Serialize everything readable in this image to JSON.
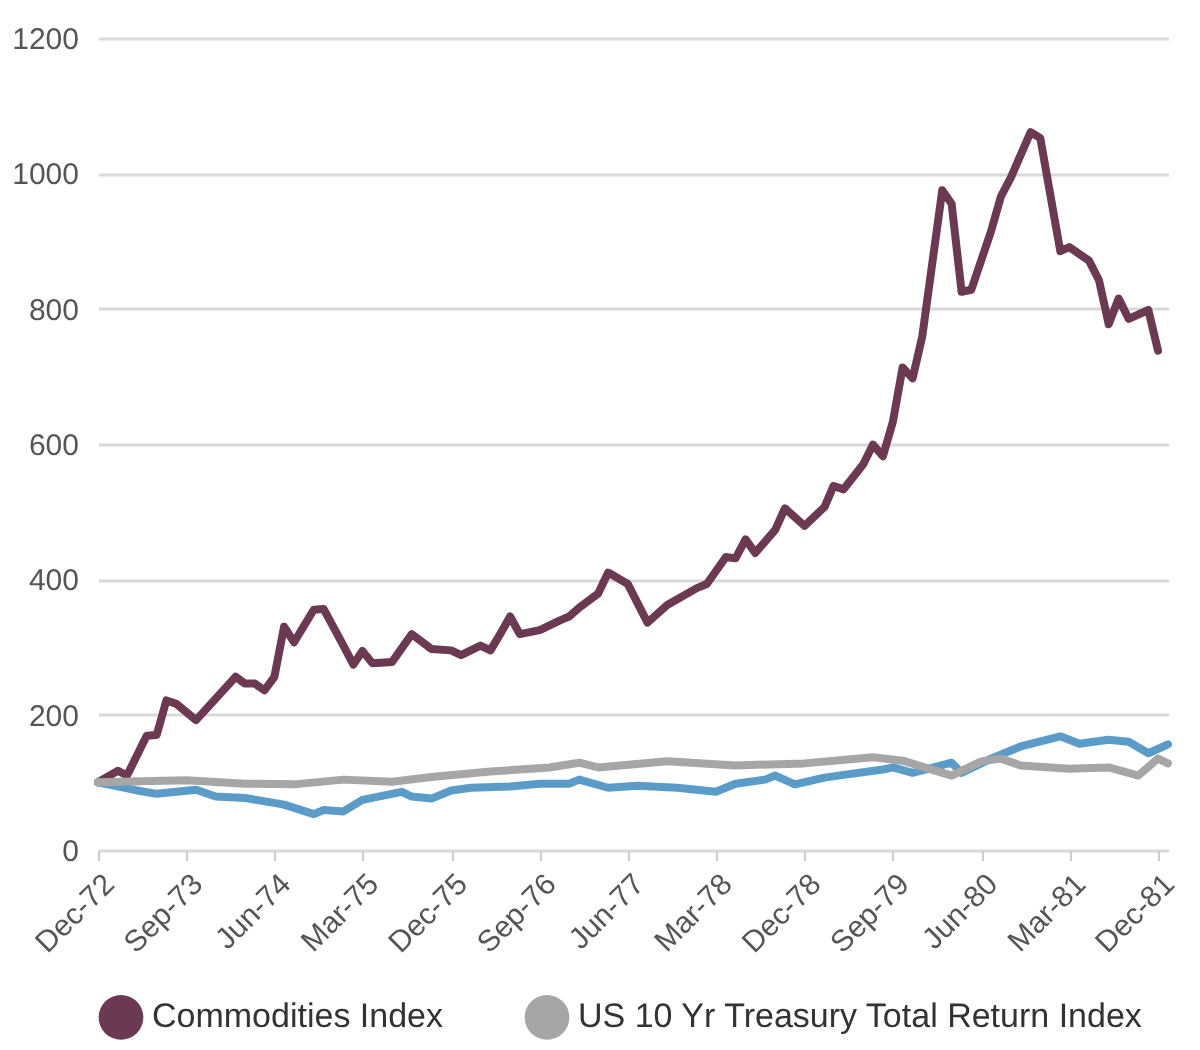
{
  "chart_data": {
    "type": "line",
    "xlim": [
      "1972-12",
      "1982-01"
    ],
    "xticks": [
      {
        "value": "1972-12",
        "label": "Dec-72"
      },
      {
        "value": "1973-09",
        "label": "Sep-73"
      },
      {
        "value": "1974-06",
        "label": "Jun-74"
      },
      {
        "value": "1975-03",
        "label": "Mar-75"
      },
      {
        "value": "1975-12",
        "label": "Dec-75"
      },
      {
        "value": "1976-09",
        "label": "Sep-76"
      },
      {
        "value": "1977-06",
        "label": "Jun-77"
      },
      {
        "value": "1978-03",
        "label": "Mar-78"
      },
      {
        "value": "1978-12",
        "label": "Dec-78"
      },
      {
        "value": "1979-09",
        "label": "Sep-79"
      },
      {
        "value": "1980-06",
        "label": "Jun-80"
      },
      {
        "value": "1981-03",
        "label": "Mar-81"
      },
      {
        "value": "1981-12",
        "label": "Dec-81"
      }
    ],
    "ylim": [
      0,
      1200
    ],
    "yticks": [
      0,
      200,
      400,
      600,
      800,
      1000,
      1200
    ],
    "grid": "y",
    "legend": "bottom",
    "marker": "none",
    "line_style": "solid",
    "series": [
      {
        "name": "Commodities Index",
        "color": "#6b3a52",
        "x": [
          "1972-12",
          "1973-02",
          "1973-03",
          "1973-05",
          "1973-06",
          "1973-07",
          "1973-08",
          "1973-10",
          "1974-02",
          "1974-03",
          "1974-04",
          "1974-05",
          "1974-06",
          "1974-07",
          "1974-08",
          "1974-10",
          "1974-11",
          "1975-01",
          "1975-02",
          "1975-03",
          "1975-04",
          "1975-06",
          "1975-08",
          "1975-10",
          "1975-12",
          "1976-01",
          "1976-03",
          "1976-04",
          "1976-05",
          "1976-06",
          "1976-07",
          "1976-09",
          "1976-11",
          "1976-12",
          "1977-01",
          "1977-03",
          "1977-04",
          "1977-06",
          "1977-08",
          "1977-10",
          "1978-01",
          "1978-02",
          "1978-04",
          "1978-05",
          "1978-06",
          "1978-07",
          "1978-09",
          "1978-10",
          "1978-12",
          "1979-02",
          "1979-03",
          "1979-04",
          "1979-06",
          "1979-07",
          "1979-08",
          "1979-09",
          "1979-10",
          "1979-11",
          "1979-12",
          "1980-02",
          "1980-03",
          "1980-04",
          "1980-05",
          "1980-07",
          "1980-08",
          "1980-09",
          "1980-11",
          "1980-12",
          "1981-02",
          "1981-03",
          "1981-05",
          "1981-06",
          "1981-07",
          "1981-08",
          "1981-09",
          "1981-11",
          "1981-12"
        ],
        "values": [
          100,
          117,
          110,
          169,
          170,
          221,
          216,
          192,
          256,
          246,
          246,
          236,
          256,
          330,
          307,
          355,
          356,
          302,
          274,
          294,
          276,
          278,
          319,
          297,
          295,
          288,
          302,
          295,
          319,
          345,
          319,
          325,
          339,
          345,
          358,
          379,
          410,
          393,
          336,
          362,
          387,
          393,
          433,
          431,
          459,
          439,
          473,
          505,
          479,
          507,
          538,
          533,
          570,
          599,
          582,
          633,
          713,
          697,
          759,
          975,
          955,
          825,
          828,
          914,
          966,
          994,
          1061,
          1052,
          885,
          891,
          871,
          842,
          777,
          815,
          785,
          798,
          738
        ]
      },
      {
        "color": "#5b9bc8",
        "x": [
          "1972-12",
          "1973-04",
          "1973-06",
          "1973-10",
          "1973-12",
          "1974-03",
          "1974-07",
          "1974-10",
          "1974-11",
          "1975-01",
          "1975-03",
          "1975-07",
          "1975-08",
          "1975-10",
          "1975-12",
          "1976-02",
          "1976-06",
          "1976-09",
          "1976-12",
          "1977-01",
          "1977-04",
          "1977-07",
          "1977-11",
          "1978-03",
          "1978-05",
          "1978-08",
          "1978-09",
          "1978-11",
          "1979-02",
          "1979-04",
          "1979-08",
          "1979-09",
          "1979-11",
          "1980-03",
          "1980-04",
          "1980-07",
          "1980-09",
          "1980-10",
          "1981-02",
          "1981-04",
          "1981-07",
          "1981-09",
          "1981-11",
          "1982-01"
        ],
        "values": [
          100,
          88,
          83,
          89,
          79,
          77,
          67,
          53,
          59,
          57,
          74,
          86,
          79,
          76,
          88,
          92,
          94,
          98,
          98,
          104,
          92,
          95,
          92,
          86,
          98,
          104,
          110,
          97,
          107,
          111,
          119,
          122,
          114,
          129,
          114,
          135,
          147,
          153,
          168,
          157,
          163,
          160,
          143,
          156
        ]
      },
      {
        "name": "US 10 Yr Treasury Total Return Index",
        "color": "#a6a6a6",
        "x": [
          "1972-12",
          "1973-09",
          "1974-03",
          "1974-08",
          "1975-01",
          "1975-06",
          "1975-10",
          "1976-04",
          "1976-10",
          "1977-01",
          "1977-03",
          "1977-10",
          "1978-05",
          "1978-12",
          "1979-07",
          "1979-10",
          "1980-03",
          "1980-06",
          "1980-08",
          "1980-10",
          "1981-03",
          "1981-07",
          "1981-10",
          "1981-12",
          "1982-01"
        ],
        "values": [
          100,
          103,
          98,
          97,
          104,
          101,
          108,
          116,
          122,
          129,
          122,
          131,
          125,
          128,
          137,
          132,
          110,
          131,
          135,
          125,
          120,
          122,
          110,
          135,
          128
        ]
      }
    ]
  }
}
